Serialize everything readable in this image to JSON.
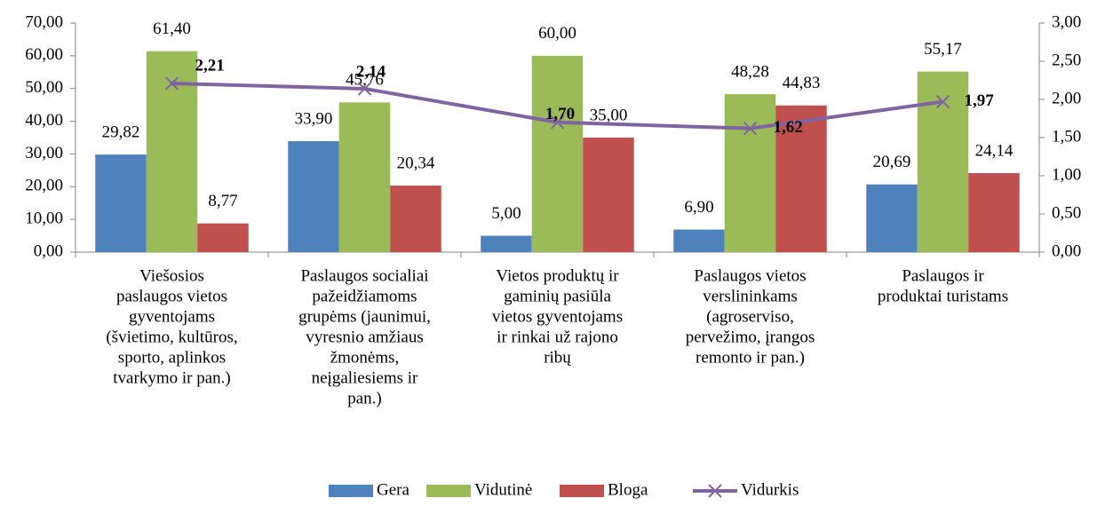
{
  "chart_data": {
    "type": "bar",
    "categories": [
      [
        "Viešosios",
        "paslaugos vietos",
        "gyventojams",
        "(švietimo, kultūros,",
        "sporto, aplinkos",
        "tvarkymo ir pan.)"
      ],
      [
        "Paslaugos socialiai",
        "pažeidžiamoms",
        "grupėms (jaunimui,",
        "vyresnio amžiaus",
        "žmonėms,",
        "neįgaliesiems ir",
        "pan.)"
      ],
      [
        "Vietos produktų ir",
        "gaminių pasiūla",
        "vietos gyventojams",
        "ir rinkai už rajono",
        "ribų"
      ],
      [
        "Paslaugos vietos",
        "verslininkams",
        "(agroserviso,",
        "pervežimo, įrangos",
        "remonto ir pan.)"
      ],
      [
        "Paslaugos ir",
        "produktai turistams"
      ]
    ],
    "series": [
      {
        "name": "Gera",
        "type": "bar",
        "color": "#4f81bd",
        "values": [
          29.82,
          33.9,
          5.0,
          6.9,
          20.69
        ],
        "value_labels": [
          "29,82",
          "33,90",
          "5,00",
          "6,90",
          "20,69"
        ]
      },
      {
        "name": "Vidutinė",
        "type": "bar",
        "color": "#9bbb59",
        "values": [
          61.4,
          45.76,
          60.0,
          48.28,
          55.17
        ],
        "value_labels": [
          "61,40",
          "45,76",
          "60,00",
          "48,28",
          "55,17"
        ]
      },
      {
        "name": "Bloga",
        "type": "bar",
        "color": "#c0504d",
        "values": [
          8.77,
          20.34,
          35.0,
          44.83,
          24.14
        ],
        "value_labels": [
          "8,77",
          "20,34",
          "35,00",
          "44,83",
          "24,14"
        ]
      },
      {
        "name": "Vidurkis",
        "type": "line",
        "axis": "y2",
        "color": "#8064a2",
        "values": [
          2.21,
          2.14,
          1.7,
          1.62,
          1.97
        ],
        "value_labels": [
          "2,21",
          "2,14",
          "1,70",
          "1,62",
          "1,97"
        ]
      }
    ],
    "ylim": [
      0,
      70
    ],
    "yticks": [
      {
        "value": 0,
        "label": "0,00"
      },
      {
        "value": 10,
        "label": "10,00"
      },
      {
        "value": 20,
        "label": "20,00"
      },
      {
        "value": 30,
        "label": "30,00"
      },
      {
        "value": 40,
        "label": "40,00"
      },
      {
        "value": 50,
        "label": "50,00"
      },
      {
        "value": 60,
        "label": "60,00"
      },
      {
        "value": 70,
        "label": "70,00"
      }
    ],
    "y2lim": [
      0,
      3
    ],
    "y2ticks": [
      {
        "value": 0,
        "label": "0,00"
      },
      {
        "value": 0.5,
        "label": "0,50"
      },
      {
        "value": 1,
        "label": "1,00"
      },
      {
        "value": 1.5,
        "label": "1,50"
      },
      {
        "value": 2,
        "label": "2,00"
      },
      {
        "value": 2.5,
        "label": "2,50"
      },
      {
        "value": 3,
        "label": "3,00"
      }
    ],
    "legend": "bottom"
  }
}
